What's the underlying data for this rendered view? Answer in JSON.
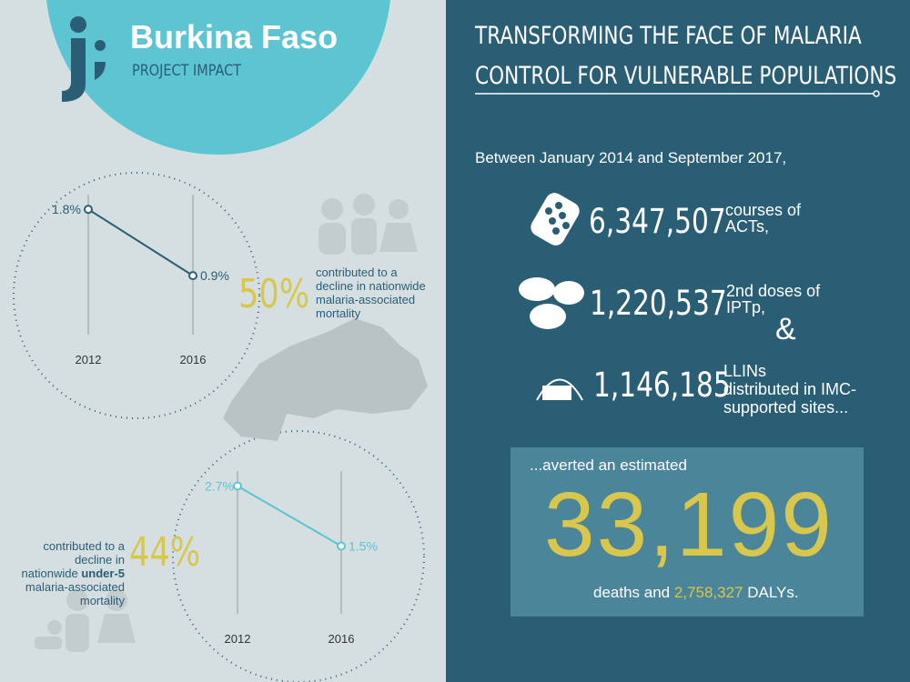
{
  "header": {
    "country": "Burkina Faso",
    "subtitle": "PROJECT IMPACT"
  },
  "headline": [
    "TRANSFORMING THE FACE OF MALARIA",
    "CONTROL FOR VULNERABLE POPULATIONS"
  ],
  "intro": "Between January 2014 and September 2017,",
  "stats": [
    {
      "number": "6,347,507",
      "label": [
        "courses of",
        "ACTs,"
      ]
    },
    {
      "number": "1,220,537",
      "label": [
        "2nd doses of",
        "IPTp,"
      ]
    },
    {
      "number": "1,146,185",
      "label": [
        "LLINs",
        "distributed in IMC-",
        "supported sites..."
      ]
    }
  ],
  "ampersand": "&",
  "result": {
    "lead": "...averted an estimated",
    "deaths": "33,199",
    "tail": [
      "deaths and ",
      "2,758,327",
      " DALYs."
    ]
  },
  "impacts": [
    {
      "percent": "50%",
      "text": [
        "contributed to a",
        "decline in nationwide",
        "malaria-associated",
        "mortality"
      ]
    },
    {
      "percent": "44%",
      "text": [
        "contributed to a",
        "decline in",
        "nationwide ",
        "under-5",
        "malaria-associated",
        "mortality"
      ]
    }
  ],
  "charts": [
    {
      "type": "line",
      "categories": [
        "2012",
        "2016"
      ],
      "values": [
        1.8,
        0.9
      ],
      "value_labels": [
        "1.8%",
        "0.9%"
      ],
      "ylim": [
        0,
        2
      ],
      "color": "#2a5e75"
    },
    {
      "type": "line",
      "categories": [
        "2012",
        "2016"
      ],
      "values": [
        2.7,
        1.5
      ],
      "value_labels": [
        "2.7%",
        "1.5%"
      ],
      "ylim": [
        0,
        3
      ],
      "color": "#5cc5d1"
    }
  ]
}
